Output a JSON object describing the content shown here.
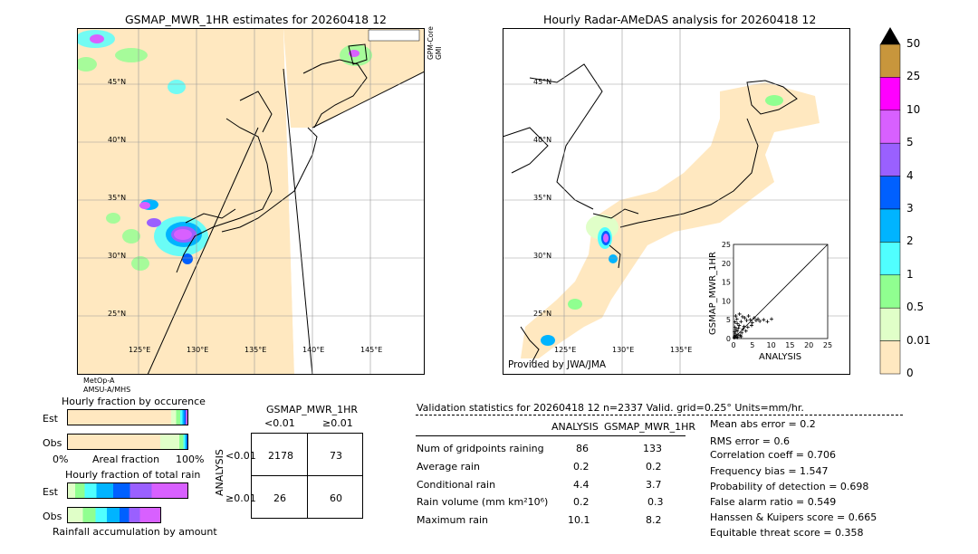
{
  "left_map": {
    "title": "GSMAP_MWR_1HR estimates for 20260418 12",
    "side_label": "GPM-Core\nGMI",
    "bottom_labels": [
      "MetOp-A",
      "AMSU-A/MHS"
    ],
    "lat_labels": [
      "45°N",
      "40°N",
      "35°N",
      "30°N",
      "25°N"
    ],
    "lon_labels": [
      "125°E",
      "130°E",
      "135°E",
      "140°E",
      "145°E"
    ]
  },
  "right_map": {
    "title": "Hourly Radar-AMeDAS analysis for 20260418 12",
    "credit": "Provided by JWA/JMA",
    "lat_labels": [
      "45°N",
      "40°N",
      "35°N",
      "30°N",
      "25°N"
    ],
    "lon_labels": [
      "125°E",
      "130°E",
      "135°E"
    ]
  },
  "colorbar": {
    "labels": [
      "50",
      "25",
      "10",
      "5",
      "4",
      "3",
      "2",
      "1",
      "0.5",
      "0.01",
      "0"
    ],
    "colors": [
      "#c8963c",
      "#ff00ff",
      "#d860ff",
      "#9a60ff",
      "#0060ff",
      "#00b4ff",
      "#50ffff",
      "#90ff90",
      "#e0ffc8",
      "#ffe8c0"
    ],
    "over_color": "#000000"
  },
  "occurrence_chart": {
    "title": "Hourly fraction by occurence",
    "rows": [
      "Est",
      "Obs"
    ],
    "axis_left": "0%",
    "axis_mid": "Areal fraction",
    "axis_right": "100%"
  },
  "total_rain_chart": {
    "title": "Hourly fraction of total rain",
    "rows": [
      "Est",
      "Obs"
    ],
    "footer": "Rainfall accumulation by amount"
  },
  "contingency": {
    "title": "GSMAP_MWR_1HR",
    "col_labels": [
      "<0.01",
      "≥0.01"
    ],
    "row_axis": "ANALYSIS",
    "row_labels": [
      "<0.01",
      "≥0.01"
    ],
    "cells": [
      [
        "2178",
        "73"
      ],
      [
        "26",
        "60"
      ]
    ]
  },
  "validation": {
    "header": "Validation statistics for 20260418 12  n=2337 Valid. grid=0.25° Units=mm/hr.",
    "col_analysis": "ANALYSIS",
    "col_gsmap": "GSMAP_MWR_1HR",
    "rows": [
      {
        "label": "Num of gridpoints raining",
        "analysis": "86",
        "gsmap": "133"
      },
      {
        "label": "Average rain",
        "analysis": "0.2",
        "gsmap": "0.2"
      },
      {
        "label": "Conditional rain",
        "analysis": "4.4",
        "gsmap": "3.7"
      },
      {
        "label": "Rain volume (mm km²10⁶)",
        "analysis": "0.2",
        "gsmap": "0.3"
      },
      {
        "label": "Maximum rain",
        "analysis": "10.1",
        "gsmap": "8.2"
      }
    ],
    "scores": [
      "Mean abs error =    0.2",
      "RMS error =    0.6",
      "Correlation coeff =  0.706",
      "Frequency bias =  1.547",
      "Probability of detection =  0.698",
      "False alarm ratio =  0.549",
      "Hanssen & Kuipers score =  0.665",
      "Equitable threat score =  0.358"
    ]
  },
  "chart_data": {
    "type": "scatter",
    "xlabel": "ANALYSIS",
    "ylabel": "GSMAP_MWR_1HR",
    "xlim": [
      0,
      25
    ],
    "ylim": [
      0,
      25
    ],
    "ticks": [
      "0",
      "5",
      "10",
      "15",
      "20",
      "25"
    ],
    "points": [
      [
        0.3,
        0.5
      ],
      [
        0.5,
        1.2
      ],
      [
        0.8,
        0.4
      ],
      [
        1.0,
        2.0
      ],
      [
        1.2,
        1.0
      ],
      [
        1.5,
        3.5
      ],
      [
        1.8,
        0.8
      ],
      [
        2.0,
        4.5
      ],
      [
        2.2,
        1.5
      ],
      [
        2.5,
        2.5
      ],
      [
        0.4,
        3.0
      ],
      [
        0.6,
        6.0
      ],
      [
        1.0,
        4.0
      ],
      [
        3.0,
        5.5
      ],
      [
        3.5,
        4.8
      ],
      [
        4.0,
        6.0
      ],
      [
        4.5,
        5.0
      ],
      [
        5.0,
        4.2
      ],
      [
        5.5,
        5.5
      ],
      [
        6.0,
        4.8
      ],
      [
        6.5,
        5.2
      ],
      [
        7.0,
        4.6
      ],
      [
        8.0,
        5.0
      ],
      [
        9.0,
        4.5
      ],
      [
        10.1,
        5.2
      ],
      [
        0.2,
        0.2
      ],
      [
        0.5,
        0.8
      ],
      [
        1.3,
        2.8
      ],
      [
        2.8,
        3.2
      ],
      [
        3.3,
        2.0
      ],
      [
        0.9,
        5.2
      ],
      [
        1.6,
        6.5
      ],
      [
        2.4,
        5.8
      ],
      [
        0.3,
        1.8
      ],
      [
        0.7,
        2.4
      ],
      [
        4.8,
        3.5
      ],
      [
        3.8,
        3.0
      ],
      [
        2.0,
        0.5
      ],
      [
        1.1,
        0.3
      ],
      [
        0.4,
        4.4
      ]
    ]
  }
}
